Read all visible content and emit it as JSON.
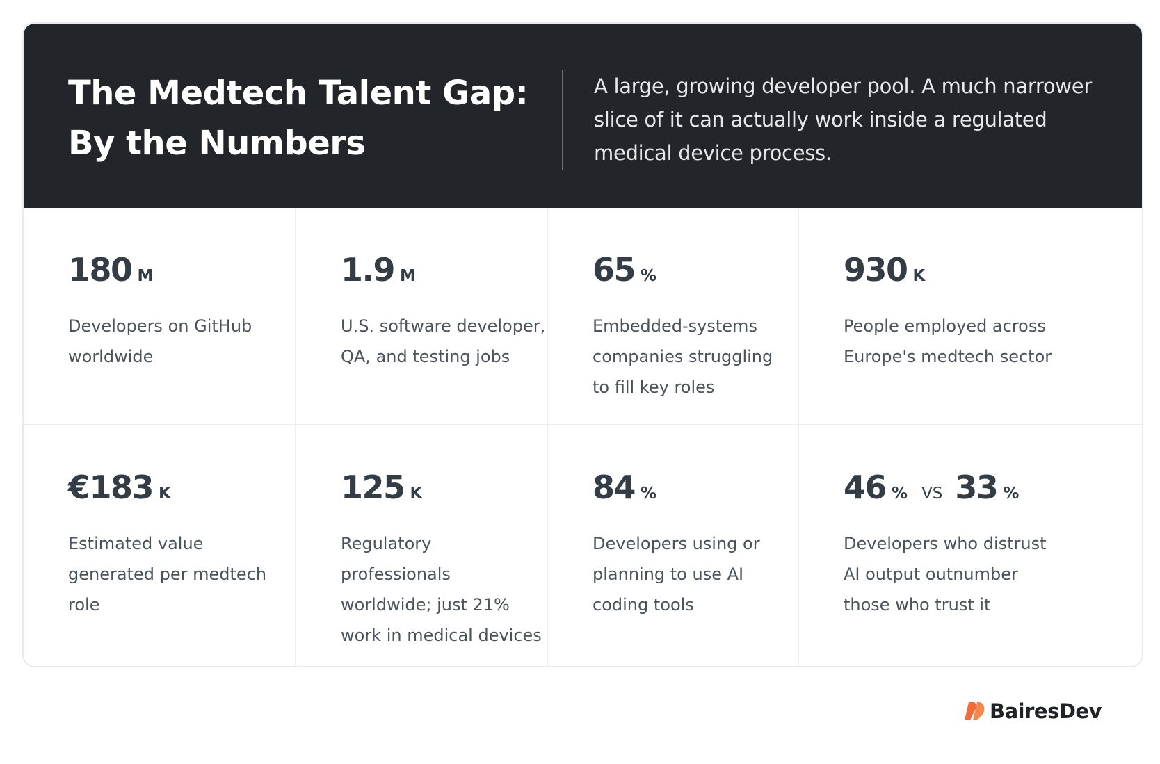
{
  "header": {
    "title_line1": "The Medtech Talent Gap:",
    "title_line2": "By the Numbers",
    "subtitle": "A large, growing developer pool. A much narrower slice of it can actually work inside a regulated medical device process."
  },
  "stats": [
    {
      "value": "180",
      "unit": "M",
      "description": "Developers on GitHub worldwide"
    },
    {
      "value": "1.9",
      "unit": "M",
      "description": "U.S. software developer, QA, and testing jobs"
    },
    {
      "value": "65",
      "unit": "%",
      "description": "Embedded-systems companies struggling to fill key roles"
    },
    {
      "value": "930",
      "unit": "K",
      "description": "People employed across Europe's medtech sector"
    },
    {
      "value": "€183",
      "unit": "K",
      "description": "Estimated value generated per medtech role"
    },
    {
      "value": "125",
      "unit": "K",
      "description": "Regulatory professionals worldwide; just 21% work in medical devices"
    },
    {
      "value": "84",
      "unit": "%",
      "description": "Developers using or planning to use AI coding tools"
    },
    {
      "value": "46",
      "unit": "%",
      "vs_label": "VS",
      "value2": "33",
      "unit2": "%",
      "description": "Developers who distrust AI output outnumber those who trust it"
    }
  ],
  "brand": {
    "name": "BairesDev",
    "logo_icon": "bairesdev-logo-icon",
    "accent_color": "#f26b3a",
    "header_bg": "#22262a"
  }
}
